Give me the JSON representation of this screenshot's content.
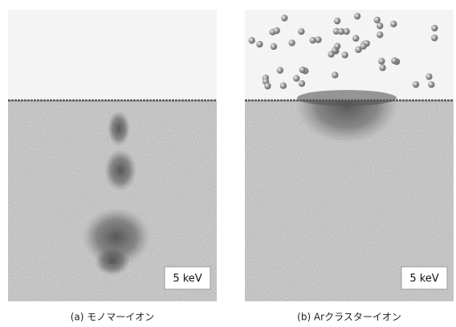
{
  "panels": [
    {
      "energy_label": "5 keV",
      "caption": "(a) モノマーイオン"
    },
    {
      "energy_label": "5 keV",
      "caption": "(b) Arクラスターイオン"
    }
  ]
}
